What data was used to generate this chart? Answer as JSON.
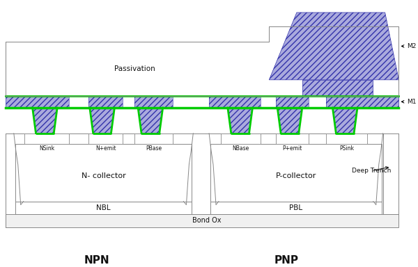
{
  "bg_color": "#ffffff",
  "hatch_color": "#3333aa",
  "hatch_fill": "#aaaadd",
  "green_color": "#00cc00",
  "outline_color": "#888888",
  "text_color": "#111111",
  "label_npn": "NPN",
  "label_pnp": "PNP",
  "label_passivation": "Passivation",
  "label_m1": "M1",
  "label_m2": "M2",
  "label_nsink": "NSink",
  "label_nemit": "N+emit",
  "label_pbase": "PBase",
  "label_nbase": "NBase",
  "label_pemit": "P+emit",
  "label_psink": "PSink",
  "label_ncollector": "N- collector",
  "label_pcollector": "P-collector",
  "label_nbl": "NBL",
  "label_pbl": "PBL",
  "label_bondox": "Bond Ox",
  "label_deeptrench": "Deep Trench"
}
